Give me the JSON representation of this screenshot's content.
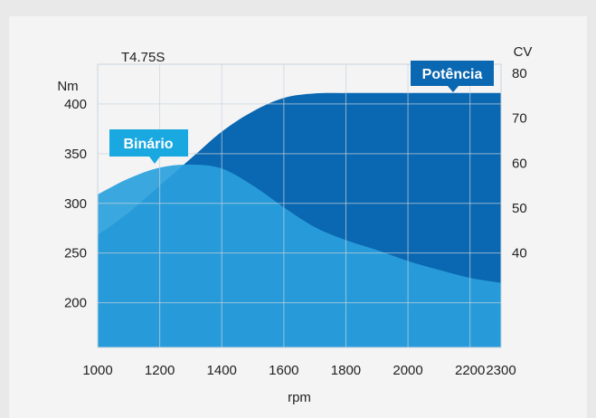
{
  "chart_data": {
    "type": "area",
    "title": "T4.75S",
    "xlabel": "rpm",
    "ylabel_left": "Nm",
    "ylabel_right": "CV",
    "x_ticks": [
      1000,
      1200,
      1400,
      1600,
      1800,
      2000,
      2200,
      2300
    ],
    "y_left_ticks": [
      200,
      250,
      300,
      350,
      400
    ],
    "y_right_ticks": [
      40,
      50,
      60,
      70,
      80
    ],
    "xlim": [
      1000,
      2300
    ],
    "ylim_left": [
      155,
      440
    ],
    "ylim_right": [
      19,
      82
    ],
    "grid": true,
    "series": [
      {
        "name": "Potência",
        "axis": "right",
        "color": "#0a67b1",
        "x": [
          1000,
          1100,
          1200,
          1300,
          1400,
          1500,
          1600,
          1700,
          1800,
          1900,
          2000,
          2100,
          2200,
          2300
        ],
        "values": [
          44,
          49,
          55,
          61,
          67,
          71.5,
          74.5,
          75.5,
          75.6,
          75.6,
          75.6,
          75.6,
          75.6,
          75.6
        ]
      },
      {
        "name": "Binário",
        "axis": "left",
        "color": "#2aa0dc",
        "x": [
          1000,
          1100,
          1200,
          1300,
          1400,
          1500,
          1600,
          1700,
          1800,
          1900,
          2000,
          2100,
          2200,
          2300
        ],
        "values": [
          309,
          325,
          336,
          339,
          335,
          318,
          296,
          276,
          263,
          253,
          242,
          233,
          225,
          220
        ]
      }
    ],
    "callouts": [
      {
        "text": "Potência",
        "series": 0,
        "color": "#0a67b1"
      },
      {
        "text": "Binário",
        "series": 1,
        "color": "#1aa8e0"
      }
    ]
  }
}
